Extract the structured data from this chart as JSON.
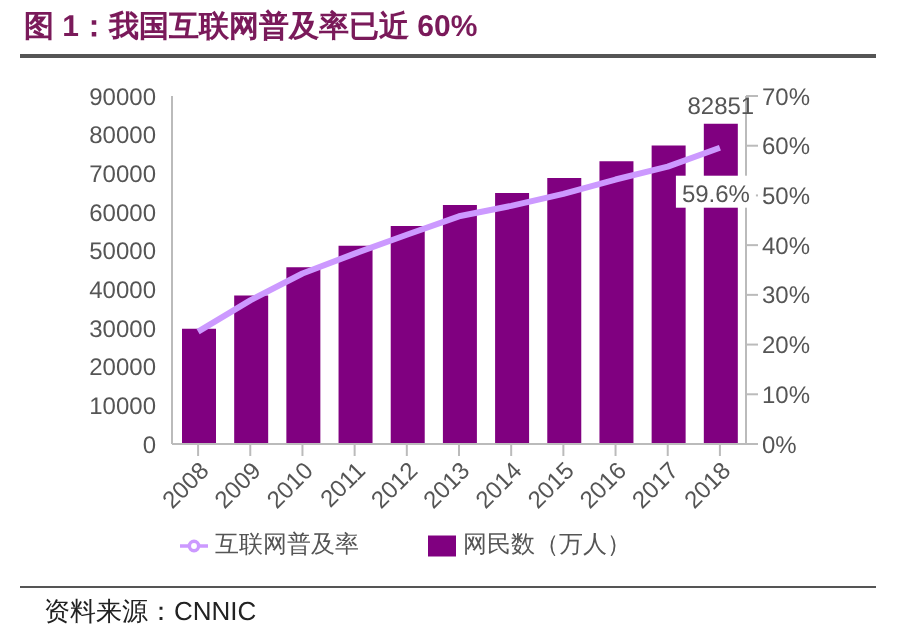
{
  "chart_data": {
    "type": "bar",
    "title": "图 1：我国互联网普及率已近 60%",
    "categories": [
      "2008",
      "2009",
      "2010",
      "2011",
      "2012",
      "2013",
      "2014",
      "2015",
      "2016",
      "2017",
      "2018"
    ],
    "series": [
      {
        "name": "网民数（万人）",
        "color": "#800080",
        "values": [
          29800,
          38400,
          45700,
          51300,
          56400,
          61800,
          64900,
          68800,
          73100,
          77200,
          82851
        ],
        "value_labels": [
          null,
          null,
          null,
          null,
          null,
          null,
          null,
          null,
          null,
          null,
          "82851"
        ]
      },
      {
        "name": "互联网普及率",
        "type": "line",
        "axis": "y2",
        "color": "#cc99ff",
        "values": [
          22.6,
          28.9,
          34.3,
          38.3,
          42.1,
          45.8,
          47.9,
          50.3,
          53.2,
          55.8,
          59.6
        ],
        "value_labels": [
          null,
          null,
          null,
          null,
          null,
          null,
          null,
          null,
          null,
          null,
          "59.6%"
        ]
      }
    ],
    "ylim": [
      0,
      90000
    ],
    "yticks": [
      0,
      10000,
      20000,
      30000,
      40000,
      50000,
      60000,
      70000,
      80000,
      90000
    ],
    "y2lim": [
      0,
      70
    ],
    "y2ticks": [
      {
        "value": 0,
        "label": "0%"
      },
      {
        "value": 10,
        "label": "10%"
      },
      {
        "value": 20,
        "label": "20%"
      },
      {
        "value": 30,
        "label": "30%"
      },
      {
        "value": 40,
        "label": "40%"
      },
      {
        "value": 50,
        "label": "50%"
      },
      {
        "value": 60,
        "label": "60%"
      },
      {
        "value": 70,
        "label": "70%"
      }
    ],
    "legend": "bottom",
    "marker": "none",
    "annotations": [
      "资料来源：CNNIC"
    ]
  }
}
